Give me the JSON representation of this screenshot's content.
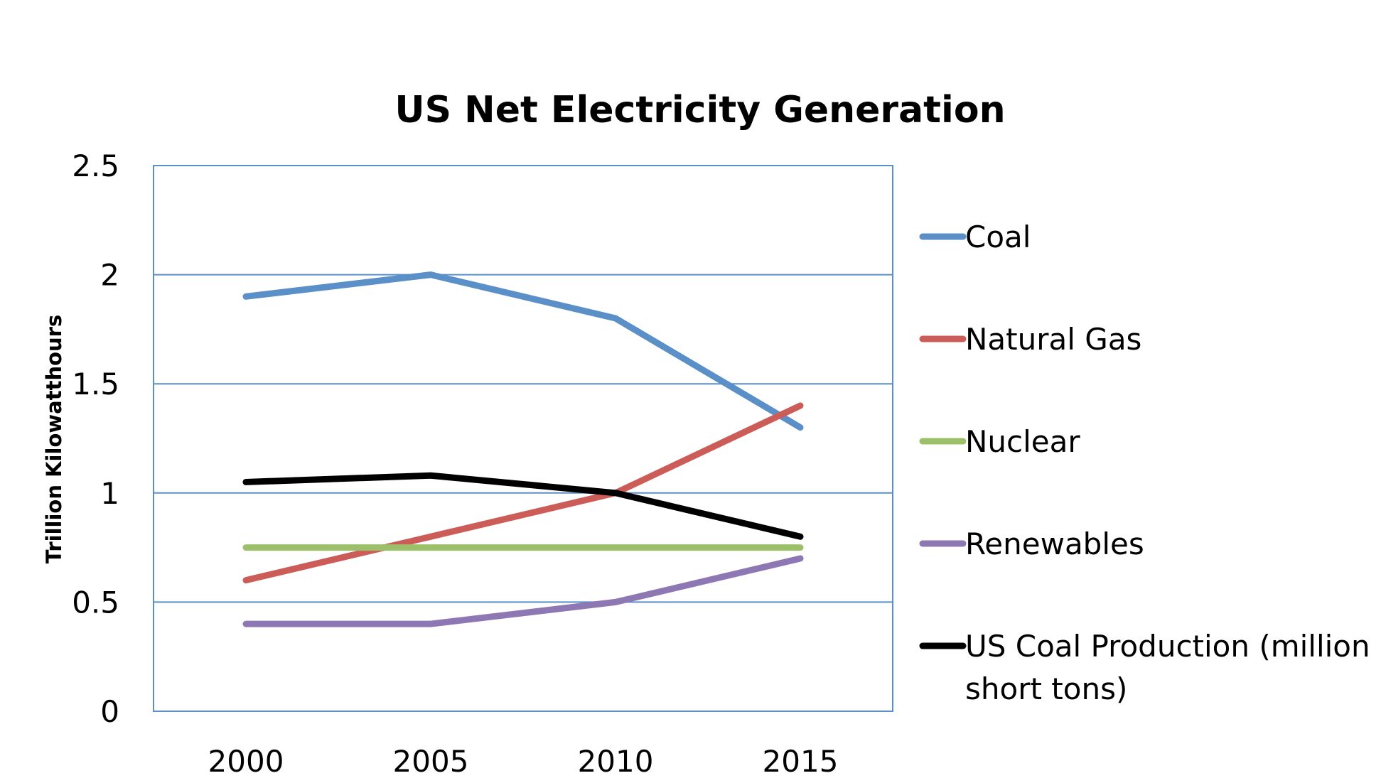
{
  "chart_data": {
    "type": "line",
    "title": "US Net Electricity Generation",
    "xlabel": "",
    "ylabel": "Trillion Kilowatthours",
    "categories": [
      "2000",
      "2005",
      "2010",
      "2015"
    ],
    "ylim": [
      0,
      2.5
    ],
    "yticks": [
      "0",
      "0.5",
      "1",
      "1.5",
      "2",
      "2.5"
    ],
    "grid": true,
    "legend_position": "right",
    "series": [
      {
        "name": "Coal",
        "color": "#5b8fc8",
        "values": [
          1.9,
          2.0,
          1.8,
          1.3
        ]
      },
      {
        "name": "Natural Gas",
        "color": "#cc5c58",
        "values": [
          0.6,
          0.8,
          1.0,
          1.4
        ]
      },
      {
        "name": "Nuclear",
        "color": "#9cc06a",
        "values": [
          0.75,
          0.75,
          0.75,
          0.75
        ]
      },
      {
        "name": "Renewables",
        "color": "#8e78b4",
        "values": [
          0.4,
          0.4,
          0.5,
          0.7
        ]
      },
      {
        "name": "US Coal Production (million short tons)",
        "legend_lines": [
          "US Coal Production (million",
          "short tons)"
        ],
        "color": "#000000",
        "values": [
          1.05,
          1.08,
          1.0,
          0.8
        ]
      }
    ]
  }
}
